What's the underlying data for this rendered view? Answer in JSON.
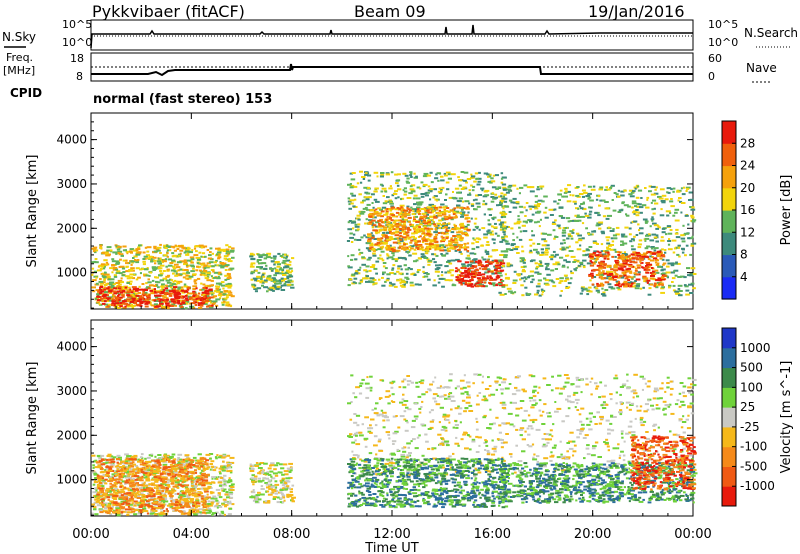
{
  "header": {
    "station": "Pykkvibaer (fitACF)",
    "beam": "Beam 09",
    "date": "19/Jan/2016"
  },
  "strips": {
    "nsky_label": "N.Sky",
    "nsearch_label": "N.Search",
    "freq_label_line1": "Freq.",
    "freq_label_line2": "[MHz]",
    "nave_label": "Nave",
    "cpid_label": "CPID",
    "cpid_text": "normal (fast stereo) 153",
    "noise_ticks_left": [
      "10^5",
      "10^0"
    ],
    "noise_ticks_right": [
      "10^5",
      "10^0"
    ],
    "freq_ticks": [
      "18",
      "8"
    ],
    "nave_ticks": [
      "60",
      "0"
    ]
  },
  "chart_data": [
    {
      "type": "heatmap",
      "title": "",
      "xlabel": "Time UT",
      "ylabel": "Slant Range [km]",
      "x_ticks": [
        "00:00",
        "04:00",
        "08:00",
        "12:00",
        "16:00",
        "20:00",
        "00:00"
      ],
      "y_ticks": [
        1000,
        2000,
        3000,
        4000
      ],
      "ylim": [
        180,
        4600
      ],
      "xlim_hours": [
        0,
        24
      ],
      "colorbar": {
        "label": "Power [dB]",
        "ticks": [
          4,
          8,
          12,
          16,
          20,
          24,
          28
        ],
        "colors": [
          "#1a2bf5",
          "#2a5ab8",
          "#3d8a7c",
          "#5fb35a",
          "#f2d40c",
          "#f5a10c",
          "#f0600c",
          "#e81a0c"
        ]
      },
      "blobs": [
        {
          "t0": 0.0,
          "t1": 5.6,
          "r0": 220,
          "r1": 1650,
          "level": 4
        },
        {
          "t0": 0.2,
          "t1": 4.8,
          "r0": 250,
          "r1": 700,
          "level": 7
        },
        {
          "t0": 6.3,
          "t1": 8.0,
          "r0": 600,
          "r1": 1450,
          "level": 3
        },
        {
          "t0": 10.2,
          "t1": 16.5,
          "r0": 700,
          "r1": 3300,
          "level": 3
        },
        {
          "t0": 11.0,
          "t1": 15.0,
          "r0": 1500,
          "r1": 2500,
          "level": 5
        },
        {
          "t0": 14.5,
          "t1": 16.4,
          "r0": 700,
          "r1": 1300,
          "level": 7
        },
        {
          "t0": 16.2,
          "t1": 24.0,
          "r0": 500,
          "r1": 3000,
          "level": 3
        },
        {
          "t0": 19.8,
          "t1": 22.8,
          "r0": 700,
          "r1": 1500,
          "level": 6
        }
      ]
    },
    {
      "type": "heatmap",
      "title": "",
      "xlabel": "Time UT",
      "ylabel": "Slant Range [km]",
      "x_ticks": [
        "00:00",
        "04:00",
        "08:00",
        "12:00",
        "16:00",
        "20:00",
        "00:00"
      ],
      "y_ticks": [
        1000,
        2000,
        3000,
        4000
      ],
      "ylim": [
        180,
        4600
      ],
      "xlim_hours": [
        0,
        24
      ],
      "colorbar": {
        "label": "Velocity [m s^-1]",
        "ticks": [
          1000,
          500,
          100,
          25,
          -25,
          -100,
          -500,
          -1000
        ],
        "colors": [
          "#1f37c8",
          "#2c6e9e",
          "#3c8a4a",
          "#6fd23a",
          "#c9c9c4",
          "#f5b81a",
          "#f58a1a",
          "#f05a14",
          "#e81a0c"
        ]
      },
      "blobs": [
        {
          "t0": 0.0,
          "t1": 5.6,
          "r0": 220,
          "r1": 1600,
          "level": 4
        },
        {
          "t0": 0.2,
          "t1": 4.6,
          "r0": 250,
          "r1": 1500,
          "level": 6
        },
        {
          "t0": 6.3,
          "t1": 8.0,
          "r0": 500,
          "r1": 1400,
          "level": 4
        },
        {
          "t0": 10.2,
          "t1": 24.0,
          "r0": 1100,
          "r1": 3400,
          "level": 4
        },
        {
          "t0": 10.2,
          "t1": 16.5,
          "r0": 400,
          "r1": 1500,
          "level": 2
        },
        {
          "t0": 16.2,
          "t1": 24.0,
          "r0": 500,
          "r1": 1400,
          "level": 2
        },
        {
          "t0": 21.5,
          "t1": 24.0,
          "r0": 800,
          "r1": 2000,
          "level": 7
        }
      ]
    }
  ]
}
